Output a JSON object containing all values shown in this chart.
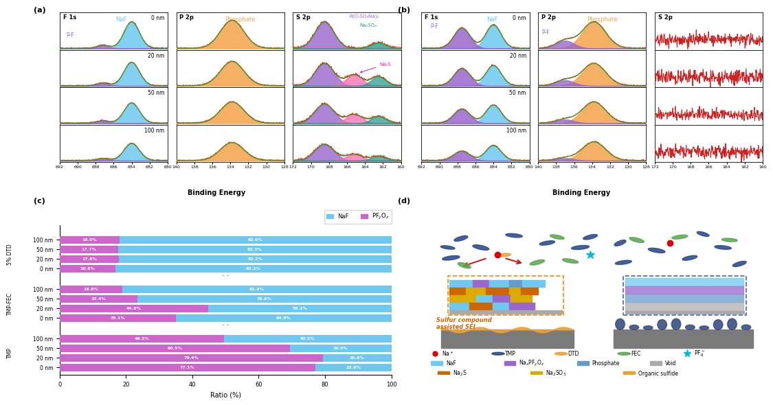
{
  "fig_width": 10.77,
  "fig_height": 5.67,
  "depths": [
    "0 nm",
    "20 nm",
    "50 nm",
    "100 nm"
  ],
  "bar_data": {
    "NaF_pct": {
      "5% DTD": [
        16.8,
        17.8,
        17.7,
        18.0
      ],
      "TMP-FEC": [
        35.1,
        44.8,
        23.4,
        18.8
      ],
      "TMP": [
        77.1,
        79.4,
        69.5,
        49.5
      ]
    },
    "PFyOz_pct": {
      "5% DTD": [
        83.2,
        82.2,
        82.3,
        82.0
      ],
      "TMP-FEC": [
        64.9,
        55.2,
        76.6,
        81.2
      ],
      "TMP": [
        22.9,
        20.6,
        30.5,
        50.5
      ]
    },
    "NaF_color": "#6FC8F0",
    "PFyOz_color": "#CC66CC"
  },
  "colors": {
    "NaF_fill": "#6FC8F0",
    "PF_fill": "#9966CC",
    "phosphate_fill": "#F5A855",
    "teal_fill": "#2A9D8F",
    "pink_fill": "#FF69B4",
    "red_line": "#FF2020",
    "green_line": "#22AA22",
    "noise_red": "#CC2222"
  }
}
